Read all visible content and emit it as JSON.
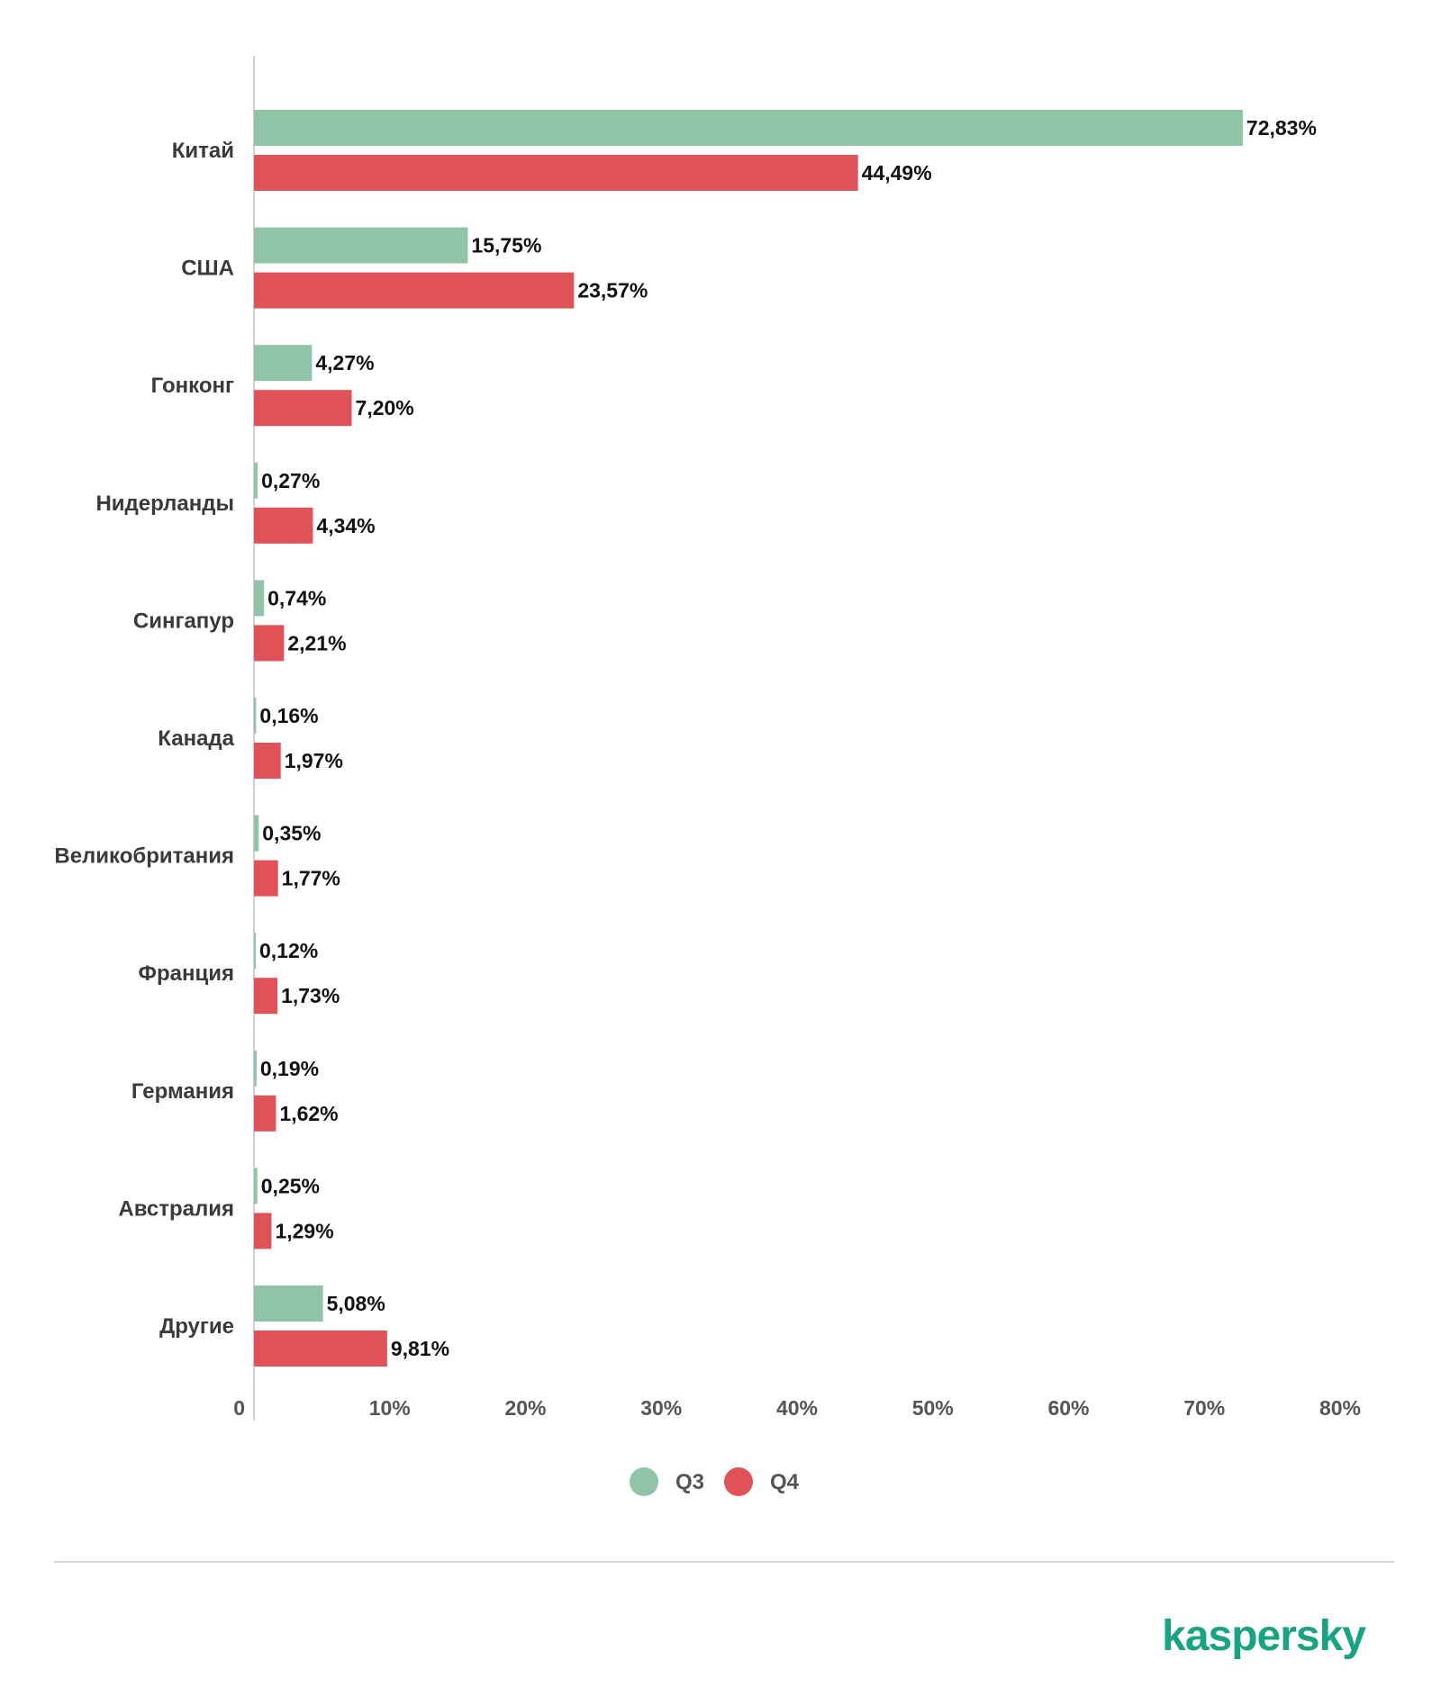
{
  "chart_data": {
    "type": "bar",
    "orientation": "horizontal",
    "categories": [
      "Китай",
      "США",
      "Гонконг",
      "Нидерланды",
      "Сингапур",
      "Канада",
      "Великобритания",
      "Франция",
      "Германия",
      "Австралия",
      "Другие"
    ],
    "series": [
      {
        "name": "Q3",
        "color": "#91c4a6",
        "values": [
          72.83,
          15.75,
          4.27,
          0.27,
          0.74,
          0.16,
          0.35,
          0.12,
          0.19,
          0.25,
          5.08
        ],
        "labels": [
          "72,83%",
          "15,75%",
          "4,27%",
          "0,27%",
          "0,74%",
          "0,16%",
          "0,35%",
          "0,12%",
          "0,19%",
          "0,25%",
          "5,08%"
        ]
      },
      {
        "name": "Q4",
        "color": "#df5258",
        "values": [
          44.49,
          23.57,
          7.2,
          4.34,
          2.21,
          1.97,
          1.77,
          1.73,
          1.62,
          1.29,
          9.81
        ],
        "labels": [
          "44,49%",
          "23,57%",
          "7,20%",
          "4,34%",
          "2,21%",
          "1,97%",
          "1,77%",
          "1,73%",
          "1,62%",
          "1,29%",
          "9,81%"
        ]
      }
    ],
    "xlim": [
      0,
      80
    ],
    "xticks": [
      0,
      10,
      20,
      30,
      40,
      50,
      60,
      70,
      80
    ],
    "xtick_labels": [
      "0",
      "10%",
      "20%",
      "30%",
      "40%",
      "50%",
      "60%",
      "70%",
      "80%"
    ],
    "grid": false,
    "legend_position": "bottom-center"
  },
  "brand": {
    "name": "kaspersky",
    "color": "#1aa383"
  }
}
